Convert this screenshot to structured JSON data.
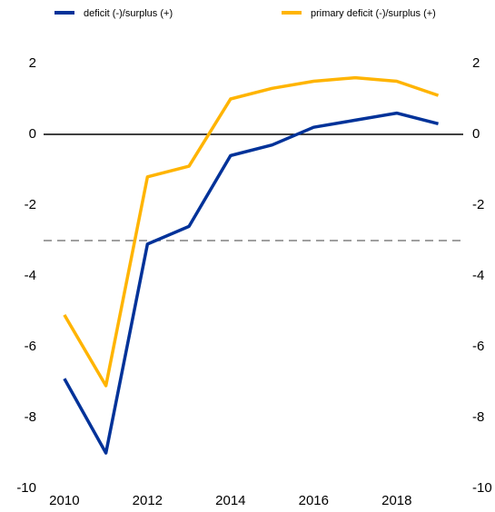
{
  "chart_data": {
    "type": "line",
    "x": [
      2010,
      2011,
      2012,
      2013,
      2014,
      2015,
      2016,
      2017,
      2018,
      2019
    ],
    "series": [
      {
        "name": "deficit (-)/surplus (+)",
        "color": "#003299",
        "values": [
          -6.9,
          -9.0,
          -3.1,
          -2.6,
          -0.6,
          -0.3,
          0.2,
          0.4,
          0.6,
          0.3
        ]
      },
      {
        "name": "primary deficit (-)/surplus (+)",
        "color": "#ffb400",
        "values": [
          -5.1,
          -7.1,
          -1.2,
          -0.9,
          1.0,
          1.3,
          1.5,
          1.6,
          1.5,
          1.1
        ]
      }
    ],
    "xlim": [
      2009.5,
      2019.6
    ],
    "xticks": [
      2010,
      2012,
      2014,
      2016,
      2018
    ],
    "ylim": [
      -10,
      2
    ],
    "yticks": [
      -10,
      -8,
      -6,
      -4,
      -2,
      0,
      2
    ],
    "y2lim": [
      -10,
      2
    ],
    "y2ticks": [
      -10,
      -8,
      -6,
      -4,
      -2,
      0,
      2
    ],
    "hlines": [
      {
        "value": 0,
        "style": "solid",
        "color": "#000000"
      },
      {
        "value": -3,
        "style": "dashed",
        "color": "#808080"
      }
    ],
    "legend": "top",
    "grid": false
  }
}
